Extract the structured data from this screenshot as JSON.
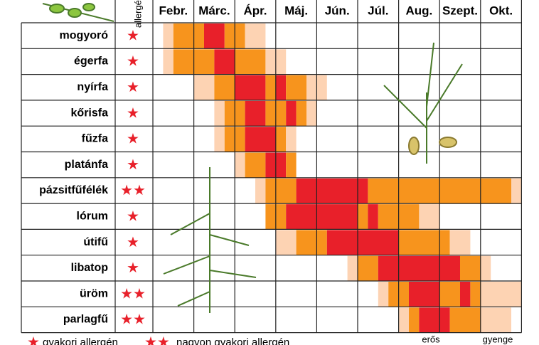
{
  "header": {
    "allergen": "allergén",
    "months": [
      "Febr.",
      "Márc.",
      "Ápr.",
      "Máj.",
      "Jún.",
      "Júl.",
      "Aug.",
      "Szept.",
      "Okt."
    ]
  },
  "level_colors": [
    "#fdd3b3",
    "#f7941d",
    "#e8202a"
  ],
  "plants": [
    {
      "name": "mogyoró",
      "stars": "★",
      "segments": [
        [
          0.25,
          0.5,
          0
        ],
        [
          0.5,
          1.25,
          1
        ],
        [
          1.25,
          1.75,
          2
        ],
        [
          1.75,
          2.25,
          1
        ],
        [
          2.25,
          2.75,
          0
        ]
      ]
    },
    {
      "name": "égerfa",
      "stars": "★",
      "segments": [
        [
          0.25,
          0.5,
          0
        ],
        [
          0.5,
          1.5,
          1
        ],
        [
          1.5,
          2,
          2
        ],
        [
          2,
          2.75,
          1
        ],
        [
          2.75,
          3.25,
          0
        ]
      ]
    },
    {
      "name": "nyírfa",
      "stars": "★",
      "segments": [
        [
          1,
          1.5,
          0
        ],
        [
          1.5,
          2,
          1
        ],
        [
          2,
          2.75,
          2
        ],
        [
          2.75,
          3,
          1
        ],
        [
          3,
          3.25,
          2
        ],
        [
          3.25,
          3.75,
          1
        ],
        [
          3.75,
          4.25,
          0
        ]
      ]
    },
    {
      "name": "kőrisfa",
      "stars": "★",
      "segments": [
        [
          1.5,
          1.75,
          0
        ],
        [
          1.75,
          2.25,
          1
        ],
        [
          2.25,
          2.75,
          2
        ],
        [
          2.75,
          3.25,
          1
        ],
        [
          3.25,
          3.5,
          2
        ],
        [
          3.5,
          3.75,
          1
        ],
        [
          3.75,
          4,
          0
        ]
      ]
    },
    {
      "name": "fűzfa",
      "stars": "★",
      "segments": [
        [
          1.5,
          1.75,
          0
        ],
        [
          1.75,
          2.25,
          1
        ],
        [
          2.25,
          3,
          2
        ],
        [
          3,
          3.25,
          1
        ],
        [
          3.25,
          3.5,
          0
        ]
      ]
    },
    {
      "name": "platánfa",
      "stars": "★",
      "segments": [
        [
          2,
          2.25,
          0
        ],
        [
          2.25,
          2.75,
          1
        ],
        [
          2.75,
          3.25,
          2
        ],
        [
          3.25,
          3.5,
          1
        ]
      ]
    },
    {
      "name": "pázsitfűfélék",
      "stars": "★★",
      "segments": [
        [
          2.5,
          2.75,
          0
        ],
        [
          2.75,
          3.5,
          1
        ],
        [
          3.5,
          5.25,
          2
        ],
        [
          5.25,
          8.75,
          1
        ],
        [
          8.75,
          9,
          0
        ]
      ]
    },
    {
      "name": "lórum",
      "stars": "★",
      "segments": [
        [
          2.75,
          3.25,
          1
        ],
        [
          3.25,
          5,
          2
        ],
        [
          5,
          5.25,
          1
        ],
        [
          5.25,
          5.5,
          2
        ],
        [
          5.5,
          6.5,
          1
        ],
        [
          6.5,
          7,
          0
        ]
      ]
    },
    {
      "name": "útifű",
      "stars": "★",
      "segments": [
        [
          3,
          3.5,
          0
        ],
        [
          3.5,
          4.25,
          1
        ],
        [
          4.25,
          6,
          2
        ],
        [
          6,
          7.25,
          1
        ],
        [
          7.25,
          7.75,
          0
        ]
      ]
    },
    {
      "name": "libatop",
      "stars": "★",
      "segments": [
        [
          4.75,
          5,
          0
        ],
        [
          5,
          5.5,
          1
        ],
        [
          5.5,
          7.5,
          2
        ],
        [
          7.5,
          8,
          1
        ],
        [
          8,
          8.25,
          0
        ]
      ]
    },
    {
      "name": "üröm",
      "stars": "★★",
      "segments": [
        [
          5.5,
          5.75,
          0
        ],
        [
          5.75,
          6.25,
          1
        ],
        [
          6.25,
          7,
          2
        ],
        [
          7,
          7.5,
          1
        ],
        [
          7.5,
          7.75,
          2
        ],
        [
          7.75,
          8,
          1
        ],
        [
          8,
          9,
          0
        ]
      ]
    },
    {
      "name": "parlagfű",
      "stars": "★★",
      "segments": [
        [
          6,
          6.25,
          0
        ],
        [
          6.25,
          6.5,
          1
        ],
        [
          6.5,
          7.25,
          2
        ],
        [
          7.25,
          8,
          1
        ],
        [
          8,
          8.75,
          0
        ]
      ]
    }
  ],
  "legend": {
    "one_star": "★",
    "one_star_text": "gyakori allergén",
    "two_stars": "★★",
    "two_stars_text": "nagyon gyakori allergén",
    "strong": "erős",
    "weak": "gyenge"
  }
}
